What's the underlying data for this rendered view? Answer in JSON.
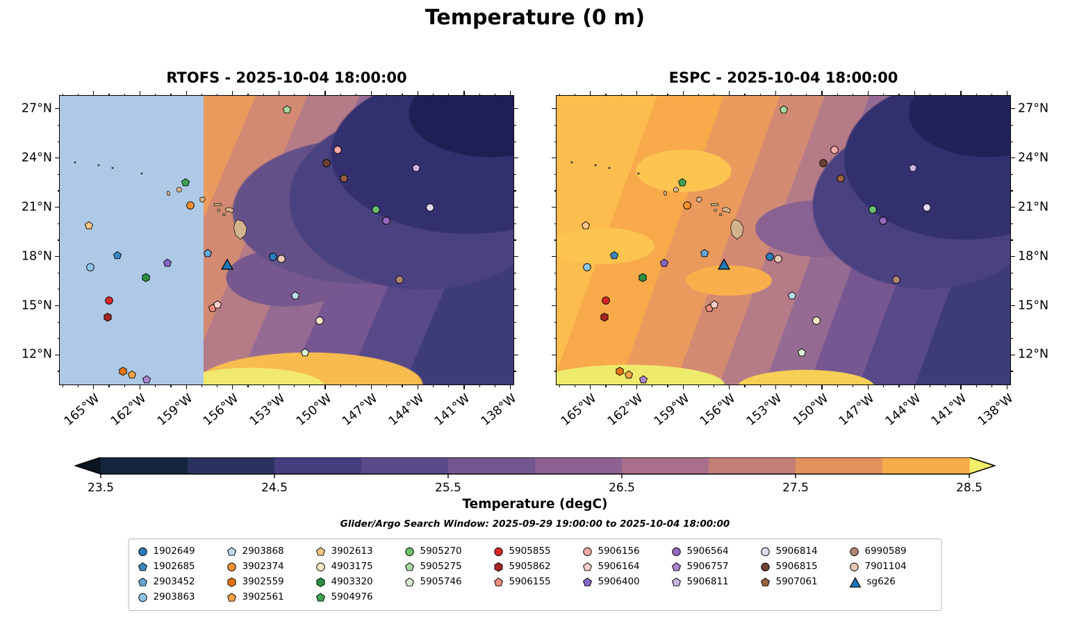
{
  "title": "Temperature (0 m)",
  "colorbar_label": "Temperature (degC)",
  "caption": "Glider/Argo Search Window: 2025-09-29 19:00:00 to 2025-10-04 18:00:00",
  "chart_data": {
    "type": "heatmap",
    "title": "Temperature (0 m)",
    "maps": [
      {
        "name": "RTOFS",
        "title": "RTOFS - 2025-10-04 18:00:00",
        "nodata_color": "#adc9e6",
        "nodata_lon_boundary": -157.9
      },
      {
        "name": "ESPC",
        "title": "ESPC - 2025-10-04 18:00:00"
      }
    ],
    "extent": {
      "lon_min": -167.2,
      "lon_max": -137.8,
      "lat_min": 10.2,
      "lat_max": 27.8
    },
    "lon_ticks": [
      {
        "lon": -165,
        "label": "165°W"
      },
      {
        "lon": -162,
        "label": "162°W"
      },
      {
        "lon": -159,
        "label": "159°W"
      },
      {
        "lon": -156,
        "label": "156°W"
      },
      {
        "lon": -153,
        "label": "153°W"
      },
      {
        "lon": -150,
        "label": "150°W"
      },
      {
        "lon": -147,
        "label": "147°W"
      },
      {
        "lon": -144,
        "label": "144°W"
      },
      {
        "lon": -141,
        "label": "141°W"
      },
      {
        "lon": -138,
        "label": "138°W"
      }
    ],
    "lat_ticks": [
      {
        "lat": 27,
        "label": "27°N"
      },
      {
        "lat": 24,
        "label": "24°N"
      },
      {
        "lat": 21,
        "label": "21°N"
      },
      {
        "lat": 18,
        "label": "18°N"
      },
      {
        "lat": 15,
        "label": "15°N"
      },
      {
        "lat": 12,
        "label": "12°N"
      }
    ],
    "colorbar": {
      "label": "Temperature (degC)",
      "vmin": 23.5,
      "vmax": 28.5,
      "ticks": [
        23.5,
        24.5,
        25.5,
        26.5,
        27.5,
        28.5
      ],
      "levels_step": 0.5,
      "extend": "both",
      "under_color": "#0a1622",
      "over_color": "#f2ef6d",
      "colors": [
        "#16263e",
        "#2c3260",
        "#443d7e",
        "#5b4a8a",
        "#735690",
        "#8d6292",
        "#a96f8b",
        "#c47e76",
        "#e0915c",
        "#f6ab49"
      ]
    },
    "land_color": "#d2b48c",
    "floats": [
      {
        "id": "1902649",
        "shape": "circle",
        "color": "#2b7bba",
        "lon": -153.4,
        "lat": 18.0
      },
      {
        "id": "1902685",
        "shape": "pentagon",
        "color": "#3a87c2",
        "lon": -163.45,
        "lat": 18.05
      },
      {
        "id": "2903452",
        "shape": "pentagon",
        "color": "#63a8d6",
        "lon": -157.6,
        "lat": 18.2
      },
      {
        "id": "2903863",
        "shape": "circle",
        "color": "#8fc6e8",
        "lon": -165.2,
        "lat": 17.35
      },
      {
        "id": "2903868",
        "shape": "pentagon",
        "color": "#bcdcf0",
        "lon": -151.95,
        "lat": 15.6
      },
      {
        "id": "3902374",
        "shape": "circle",
        "color": "#f5922f",
        "lon": -158.75,
        "lat": 21.1
      },
      {
        "id": "3902559",
        "shape": "hexagon",
        "color": "#e8740e",
        "lon": -163.1,
        "lat": 11.0
      },
      {
        "id": "3902561",
        "shape": "pentagon",
        "color": "#f9a443",
        "lon": -162.5,
        "lat": 10.8
      },
      {
        "id": "3902613",
        "shape": "pentagon",
        "color": "#fcc683",
        "lon": -165.3,
        "lat": 19.9
      },
      {
        "id": "4903175",
        "shape": "circle",
        "color": "#fdeac6",
        "lon": -150.35,
        "lat": 14.1
      },
      {
        "id": "4903320",
        "shape": "hexagon",
        "color": "#2e8f43",
        "lon": -161.6,
        "lat": 16.7
      },
      {
        "id": "5904976",
        "shape": "pentagon",
        "color": "#3da552",
        "lon": -159.05,
        "lat": 22.5
      },
      {
        "id": "5905270",
        "shape": "circle",
        "color": "#6cc26d",
        "lon": -146.7,
        "lat": 20.85
      },
      {
        "id": "5905275",
        "shape": "pentagon",
        "color": "#a8d9a2",
        "lon": -152.5,
        "lat": 26.95
      },
      {
        "id": "5905746",
        "shape": "pentagon",
        "color": "#d9efd2",
        "lon": -151.3,
        "lat": 12.15
      },
      {
        "id": "5905855",
        "shape": "circle",
        "color": "#d62829",
        "lon": -164.0,
        "lat": 15.3
      },
      {
        "id": "5905862",
        "shape": "hexagon",
        "color": "#a62626",
        "lon": -164.1,
        "lat": 14.3
      },
      {
        "id": "5906155",
        "shape": "pentagon",
        "color": "#ef8a7d",
        "lon": -157.3,
        "lat": 14.85
      },
      {
        "id": "5906156",
        "shape": "circle",
        "color": "#f6a8a2",
        "lon": -149.2,
        "lat": 24.5
      },
      {
        "id": "5906164",
        "shape": "pentagon",
        "color": "#fbd0c9",
        "lon": -157.0,
        "lat": 15.05
      },
      {
        "id": "5906400",
        "shape": "pentagon",
        "color": "#8666c6",
        "lon": -160.2,
        "lat": 17.6
      },
      {
        "id": "5906564",
        "shape": "circle",
        "color": "#9468bd",
        "lon": -146.05,
        "lat": 20.2
      },
      {
        "id": "5906757",
        "shape": "pentagon",
        "color": "#aa85d2",
        "lon": -161.55,
        "lat": 10.5
      },
      {
        "id": "5906811",
        "shape": "pentagon",
        "color": "#c9b4e4",
        "lon": -144.1,
        "lat": 23.4
      },
      {
        "id": "5906814",
        "shape": "circle",
        "color": "#e2d8f1",
        "lon": -143.2,
        "lat": 21.0
      },
      {
        "id": "5906815",
        "shape": "circle",
        "color": "#6e4134",
        "lon": -149.9,
        "lat": 23.7
      },
      {
        "id": "5907061",
        "shape": "pentagon",
        "color": "#9a6240",
        "lon": -148.8,
        "lat": 22.75
      },
      {
        "id": "6990589",
        "shape": "circle",
        "color": "#b08573",
        "lon": -145.2,
        "lat": 16.6
      },
      {
        "id": "7901104",
        "shape": "circle",
        "color": "#e6c8b4",
        "lon": -152.85,
        "lat": 17.85
      },
      {
        "id": "sg626",
        "shape": "triangle",
        "color": "#1f77b4",
        "lon": -156.35,
        "lat": 17.5
      }
    ],
    "islet_specks": [
      {
        "lon": -166.2,
        "lat": 23.75
      },
      {
        "lon": -164.7,
        "lat": 23.57
      },
      {
        "lon": -163.8,
        "lat": 23.4
      },
      {
        "lon": -161.9,
        "lat": 23.05
      }
    ],
    "legend_columns": [
      [
        "1902649",
        "1902685",
        "2903452",
        "2903863"
      ],
      [
        "2903868",
        "3902374",
        "3902559",
        "3902561"
      ],
      [
        "3902613",
        "4903175",
        "4903320",
        "5904976"
      ],
      [
        "5905270",
        "5905275",
        "5905746"
      ],
      [
        "5905855",
        "5905862",
        "5906155"
      ],
      [
        "5906156",
        "5906164",
        "5906400"
      ],
      [
        "5906564",
        "5906757",
        "5906811"
      ],
      [
        "5906814",
        "5906815",
        "5907061"
      ],
      [
        "6990589",
        "7901104",
        "sg626"
      ]
    ]
  }
}
